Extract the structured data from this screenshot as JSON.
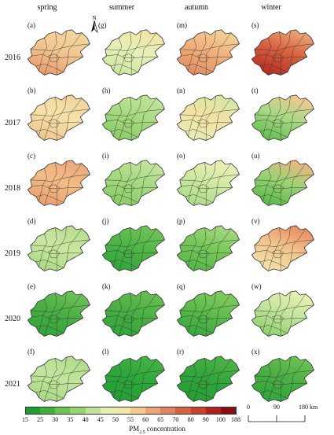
{
  "seasons": [
    "spring",
    "summer",
    "autumn",
    "winter"
  ],
  "years": [
    "2016",
    "2017",
    "2018",
    "2019",
    "2020",
    "2021"
  ],
  "panel_letters": [
    [
      "(a)",
      "(g)",
      "(m)",
      "(s)"
    ],
    [
      "(b)",
      "(h)",
      "(n)",
      "(t)"
    ],
    [
      "(c)",
      "(i)",
      "(o)",
      "(u)"
    ],
    [
      "(d)",
      "(j)",
      "(p)",
      "(v)"
    ],
    [
      "(e)",
      "(k)",
      "(q)",
      "(w)"
    ],
    [
      "(f)",
      "(l)",
      "(r)",
      "(x)"
    ]
  ],
  "north_label": "N",
  "legend": {
    "title_main": "PM",
    "title_sub": "2.5",
    "title_rest": " concentration",
    "ticks": [
      "15",
      "25",
      "30",
      "35",
      "40",
      "45",
      "50",
      "55",
      "60",
      "65",
      "70",
      "80",
      "90",
      "100",
      "188"
    ],
    "colors": [
      "#1a9e2e",
      "#3fb13a",
      "#6cc352",
      "#97d470",
      "#bfe398",
      "#e3efb4",
      "#f4e7a6",
      "#f4c98a",
      "#eda574",
      "#e4835d",
      "#d8613f",
      "#c7402a",
      "#b31f1a",
      "#8f0a10"
    ]
  },
  "scale_bar": {
    "labels": [
      "0",
      "90",
      "180 km"
    ]
  },
  "panel_colors": [
    [
      [
        "#e7996a",
        "#f1c68f",
        "#f3d89e"
      ],
      [
        "#c9e7a0",
        "#e7efb6",
        "#f2e4a6"
      ],
      [
        "#e28a5e",
        "#f0b07c",
        "#f3d397"
      ],
      [
        "#b5291e",
        "#d8613f",
        "#eaa777"
      ]
    ],
    [
      [
        "#f1c48d",
        "#f6e2a8",
        "#f1d49b"
      ],
      [
        "#86cc62",
        "#a8da80",
        "#c2e49a"
      ],
      [
        "#e8eeb2",
        "#f2e2a3",
        "#d4e8a3"
      ],
      [
        "#5cbd4a",
        "#aad985",
        "#f2c98f"
      ]
    ],
    [
      [
        "#e99c6c",
        "#f2bd86",
        "#eca97b"
      ],
      [
        "#86cc62",
        "#a6d97f",
        "#c7e59f"
      ],
      [
        "#a9da84",
        "#d0e9a2",
        "#ecefb5"
      ],
      [
        "#53b844",
        "#9ad373",
        "#f0b681"
      ]
    ],
    [
      [
        "#a9d983",
        "#c9e69f",
        "#b6de8e"
      ],
      [
        "#2ea53a",
        "#4fb646",
        "#70c456"
      ],
      [
        "#4fb646",
        "#79c85b",
        "#a4d87e"
      ],
      [
        "#f2e5a8",
        "#f1c38c",
        "#e88d60"
      ]
    ],
    [
      [
        "#2ea53a",
        "#4aaf43",
        "#70c456"
      ],
      [
        "#2ea53a",
        "#4aaf43",
        "#66c050"
      ],
      [
        "#32a63c",
        "#5cbd4a",
        "#82ca5e"
      ],
      [
        "#8ccf66",
        "#c3e59d",
        "#eaf0b4"
      ]
    ],
    [
      [
        "#a5d880",
        "#c3e59d",
        "#b0dc89"
      ],
      [
        "#20a032",
        "#2da83a",
        "#46b244"
      ],
      [
        "#20a032",
        "#32a63c",
        "#4db545"
      ],
      [
        "#2ea53a",
        "#4aaf43",
        "#6cc352"
      ]
    ]
  ]
}
